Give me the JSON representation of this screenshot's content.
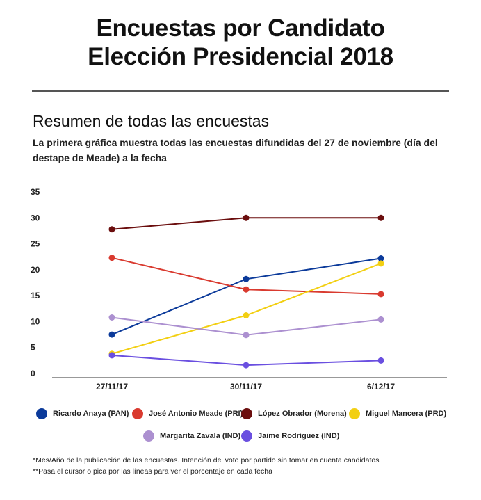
{
  "header": {
    "title_line1": "Encuestas por Candidato",
    "title_line2": "Elección Presidencial 2018"
  },
  "section": {
    "subtitle": "Resumen de todas las encuestas",
    "description": "La primera gráfica muestra todas las encuestas difundidas del 27 de noviembre (día del destape de Meade) a la fecha"
  },
  "chart_data": {
    "type": "line",
    "categories": [
      "27/11/17",
      "30/11/17",
      "6/12/17"
    ],
    "ylim": [
      0,
      35
    ],
    "yticks": [
      0,
      5,
      10,
      15,
      20,
      25,
      30,
      35
    ],
    "grid": false,
    "legend_position": "bottom",
    "series": [
      {
        "name": "Ricardo Anaya (PAN)",
        "color": "#0b3a9a",
        "values": [
          7.5,
          18.2,
          22.2
        ]
      },
      {
        "name": "José Antonio Meade (PRI)",
        "color": "#d93a2f",
        "values": [
          22.3,
          16.2,
          15.3
        ]
      },
      {
        "name": "López Obrador (Morena)",
        "color": "#6b0e0e",
        "values": [
          27.8,
          30.0,
          30.0
        ]
      },
      {
        "name": "Miguel Mancera (PRD)",
        "color": "#f2cf12",
        "values": [
          3.8,
          11.2,
          21.2
        ]
      },
      {
        "name": "Margarita Zavala (IND)",
        "color": "#ac90d0",
        "values": [
          10.8,
          7.4,
          10.4
        ]
      },
      {
        "name": "Jaime Rodríguez (IND)",
        "color": "#6a4fe0",
        "values": [
          3.5,
          1.6,
          2.5
        ]
      }
    ]
  },
  "footnotes": {
    "note1": "*Mes/Año de la publicación de las encuestas. Intención del voto por partido sin tomar en cuenta candidatos",
    "note2": "**Pasa el cursor o pica por las líneas para ver el porcentaje en cada fecha"
  }
}
